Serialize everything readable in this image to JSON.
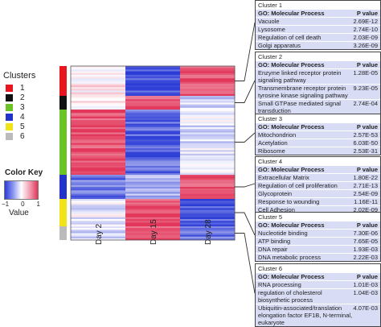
{
  "chart_data": {
    "type": "heatmap",
    "columns": [
      "Day 2",
      "Day 15",
      "Day 28"
    ],
    "clusters": [
      {
        "id": "1",
        "color": "#e8141e",
        "pattern": [
          0.1,
          -0.9,
          0.85
        ]
      },
      {
        "id": "2",
        "color": "#111111",
        "pattern": [
          0.05,
          0.85,
          -0.2
        ]
      },
      {
        "id": "3",
        "color": "#6cc424",
        "pattern": [
          0.9,
          -0.75,
          -0.15
        ]
      },
      {
        "id": "4",
        "color": "#2233cc",
        "pattern": [
          -0.7,
          -0.4,
          0.9
        ]
      },
      {
        "id": "5",
        "color": "#f0e418",
        "pattern": [
          -0.1,
          0.9,
          -0.85
        ]
      },
      {
        "id": "6",
        "color": "#bbbbbb",
        "pattern": [
          -0.2,
          0.85,
          -0.7
        ]
      }
    ],
    "legend": {
      "title": "Clusters",
      "labels": [
        "1",
        "2",
        "3",
        "4",
        "5",
        "6"
      ]
    },
    "color_key": {
      "title": "Color Key",
      "ticks": [
        "−1",
        "0",
        "1"
      ],
      "xlabel": "Value",
      "range": [
        -1,
        1
      ],
      "low_color": "#2b3bd6",
      "mid_color": "#ffffff",
      "high_color": "#e2365a"
    },
    "annotations": [
      {
        "cluster": "Cluster 1",
        "header": [
          "GO: Molecular Process",
          "P value"
        ],
        "rows": [
          [
            "Vacuole",
            "2.69E-12"
          ],
          [
            "Lysosome",
            "2.74E-10"
          ],
          [
            "Regulation of cell death",
            "2.03E-09"
          ],
          [
            "Golgi apparatus",
            "3.26E-09"
          ]
        ]
      },
      {
        "cluster": "Cluster 2",
        "header": [
          "GO: Molecular Process",
          "P value"
        ],
        "rows": [
          [
            "Enzyme linked receptor protein signaling pathway",
            "1.28E-05"
          ],
          [
            "Transmembrane receptor protein tyrosine kinase signaling pathway",
            "9.23E-05"
          ],
          [
            "Small GTPase mediated signal transduction",
            "2.74E-04"
          ]
        ]
      },
      {
        "cluster": "Cluster 3",
        "header": [
          "GO: Molecular Process",
          "P value"
        ],
        "rows": [
          [
            "Mitochondrion",
            "2.57E-53"
          ],
          [
            "Acetylation",
            "6.03E-50"
          ],
          [
            "Ribosome",
            "2.53E-31"
          ]
        ]
      },
      {
        "cluster": "Cluster 4",
        "header": [
          "GO: Molecular Process",
          "P value"
        ],
        "rows": [
          [
            "Extracellular Matrix",
            "1.80E-22"
          ],
          [
            "Regulation of cell proliferation",
            "2.71E-13"
          ],
          [
            "Glycoprotein",
            "2.54E-09"
          ],
          [
            "Response to wounding",
            "1.16E-11"
          ],
          [
            "Cell Adhesion",
            "2.02E-09"
          ]
        ]
      },
      {
        "cluster": "Cluster 5",
        "header": [
          "GO: Molecular Process",
          "P value"
        ],
        "rows": [
          [
            "Nucleotide binding",
            "7.30E-06"
          ],
          [
            "ATP binding",
            "7.65E-05"
          ],
          [
            "DNA repair",
            "1.93E-03"
          ],
          [
            "DNA metabolic process",
            "2.22E-03"
          ]
        ]
      },
      {
        "cluster": "Cluster 6",
        "header": [
          "GO: Molecular Process",
          "P value"
        ],
        "rows": [
          [
            "RNA processing",
            "1.01E-03"
          ],
          [
            "regulation of cholesterol biosynthetic process",
            "1.04E-03"
          ],
          [
            "Ubiquitin-associated/translation elongation factor EF1B, N-terminal, eukaryote",
            "4.07E-03"
          ]
        ]
      }
    ]
  }
}
